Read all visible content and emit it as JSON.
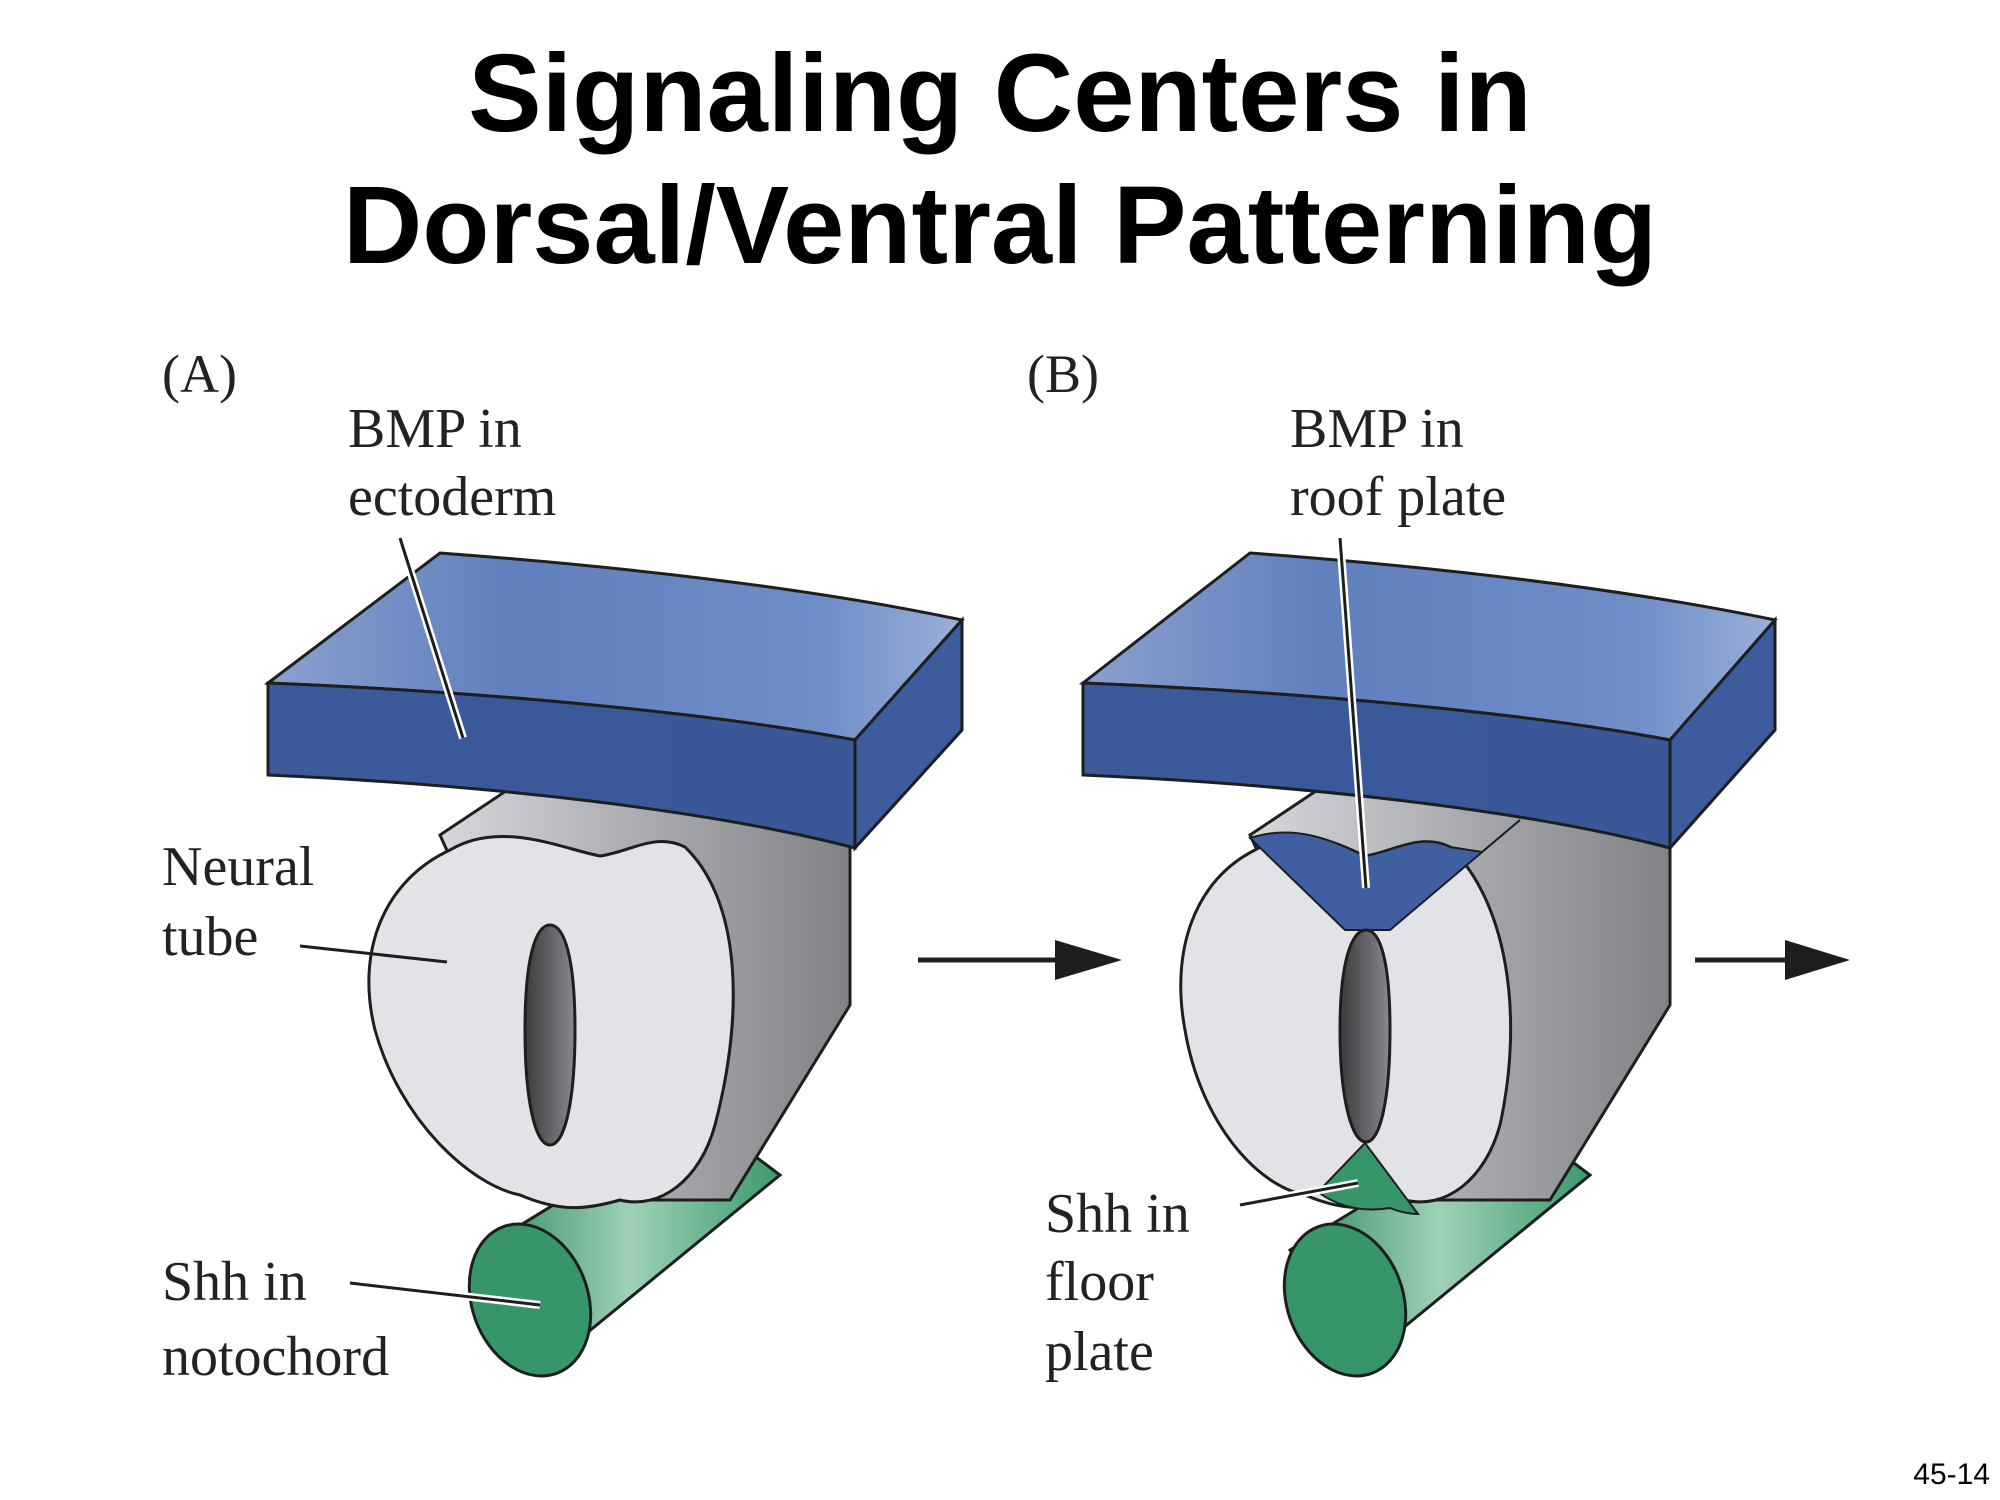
{
  "title": {
    "line1": "Signaling Centers in",
    "line2": "Dorsal/Ventral Patterning"
  },
  "panel_a": {
    "label": "(A)",
    "bmp_label": [
      "BMP in",
      "ectoderm"
    ],
    "neural_label": [
      "Neural",
      "tube"
    ],
    "shh_label": [
      "Shh in",
      "notochord"
    ]
  },
  "panel_b": {
    "label": "(B)",
    "bmp_label": [
      "BMP in",
      "roof plate"
    ],
    "shh_label": [
      "Shh in",
      "floor",
      "plate"
    ]
  },
  "slide_number": "45-14",
  "colors": {
    "bmp_blue": "#3f5fa0",
    "shh_green": "#379668",
    "tube_face": "#e2e3e6",
    "tube_side": "#9a9ca0",
    "lumen": "#555558"
  }
}
